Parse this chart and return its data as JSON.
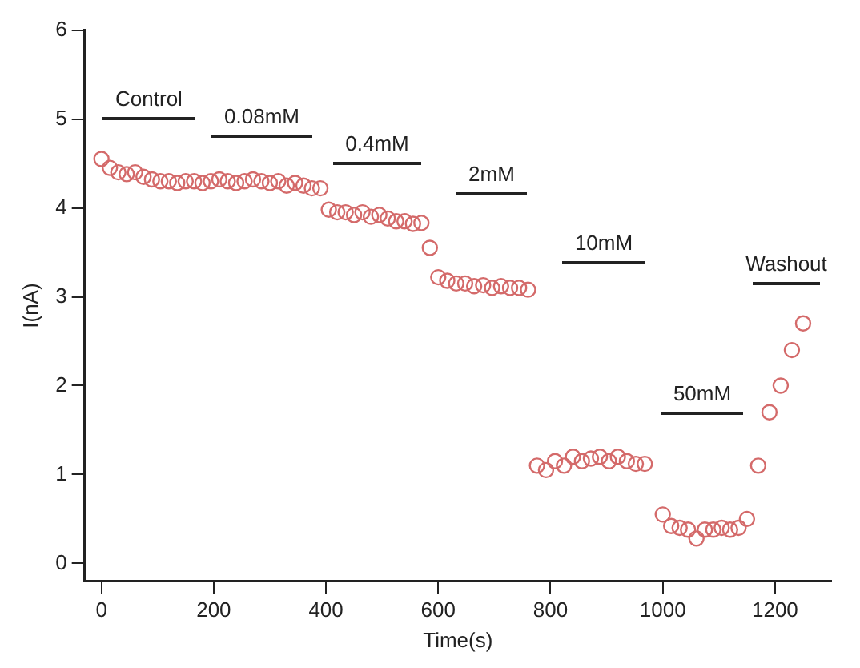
{
  "chart_data": {
    "type": "scatter",
    "xlabel": "Time(s)",
    "ylabel": "I(nA)",
    "xlim": [
      -30,
      1300
    ],
    "xticks": [
      0,
      200,
      400,
      600,
      800,
      1000,
      1200
    ],
    "ylim": [
      -0.2,
      6
    ],
    "yticks": [
      0,
      1,
      2,
      3,
      4,
      5,
      6
    ],
    "marker": "circle",
    "series": [
      {
        "color": "#d46a6a",
        "x": [
          0,
          15,
          30,
          45,
          60,
          75,
          90,
          105,
          120,
          135,
          150,
          165,
          180,
          195,
          210,
          225,
          240,
          255,
          270,
          285,
          300,
          315,
          330,
          345,
          360,
          375,
          390,
          405,
          420,
          435,
          450,
          465,
          480,
          495,
          510,
          525,
          540,
          555,
          570,
          585,
          600,
          616,
          632,
          648,
          664,
          680,
          696,
          712,
          728,
          744,
          760,
          776,
          792,
          808,
          824,
          840,
          856,
          872,
          888,
          904,
          920,
          936,
          952,
          968,
          1000,
          1015,
          1030,
          1045,
          1060,
          1075,
          1090,
          1105,
          1120,
          1135,
          1150,
          1170,
          1190,
          1210,
          1230,
          1250
        ],
        "values": [
          4.55,
          4.45,
          4.4,
          4.38,
          4.4,
          4.35,
          4.32,
          4.3,
          4.3,
          4.28,
          4.3,
          4.3,
          4.28,
          4.3,
          4.32,
          4.3,
          4.28,
          4.3,
          4.32,
          4.3,
          4.28,
          4.3,
          4.25,
          4.28,
          4.25,
          4.22,
          4.22,
          3.98,
          3.95,
          3.95,
          3.92,
          3.95,
          3.9,
          3.92,
          3.88,
          3.85,
          3.85,
          3.82,
          3.83,
          3.55,
          3.22,
          3.18,
          3.15,
          3.15,
          3.12,
          3.13,
          3.1,
          3.12,
          3.1,
          3.1,
          3.08,
          1.1,
          1.05,
          1.15,
          1.1,
          1.2,
          1.15,
          1.18,
          1.2,
          1.15,
          1.2,
          1.15,
          1.12,
          1.12,
          0.55,
          0.42,
          0.4,
          0.38,
          0.28,
          0.38,
          0.38,
          0.4,
          0.38,
          0.4,
          0.5,
          1.1,
          1.7,
          2.0,
          2.4,
          2.7
        ]
      }
    ],
    "annotations": [
      "Control",
      "0.08mM",
      "0.4mM",
      "2mM",
      "10mM",
      "50mM",
      "Washout"
    ]
  }
}
